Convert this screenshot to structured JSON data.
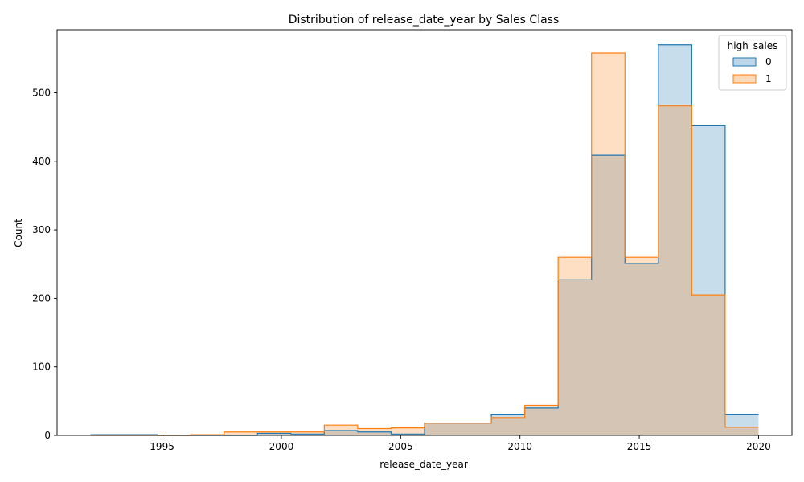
{
  "chart_data": {
    "type": "histogram",
    "title": "Distribution of release_date_year by Sales Class",
    "xlabel": "release_date_year",
    "ylabel": "Count",
    "xlim": [
      1990.6,
      2021.4
    ],
    "ylim": [
      0,
      592
    ],
    "x_ticks": [
      1995,
      2000,
      2005,
      2010,
      2015,
      2020
    ],
    "y_ticks": [
      0,
      100,
      200,
      300,
      400,
      500
    ],
    "legend": {
      "title": "high_sales",
      "placement": "top-right"
    },
    "bin_edges": [
      1992,
      1993.4,
      1994.8,
      1996.2,
      1997.6,
      1999,
      2000.4,
      2001.8,
      2003.2,
      2004.6,
      2006,
      2007.4,
      2008.8,
      2010.2,
      2011.6,
      2013,
      2014.4,
      2015.8,
      2017.2,
      2018.6,
      2020
    ],
    "series": [
      {
        "name": "0",
        "color": "#1f77b4",
        "values": [
          1,
          1,
          0,
          0,
          0,
          3,
          2,
          7,
          5,
          2,
          18,
          18,
          31,
          40,
          227,
          409,
          251,
          570,
          452,
          31
        ]
      },
      {
        "name": "1",
        "color": "#ff7f0e",
        "values": [
          0,
          0,
          0,
          1,
          5,
          5,
          5,
          15,
          10,
          11,
          18,
          18,
          26,
          44,
          260,
          558,
          260,
          481,
          205,
          12
        ]
      }
    ]
  }
}
